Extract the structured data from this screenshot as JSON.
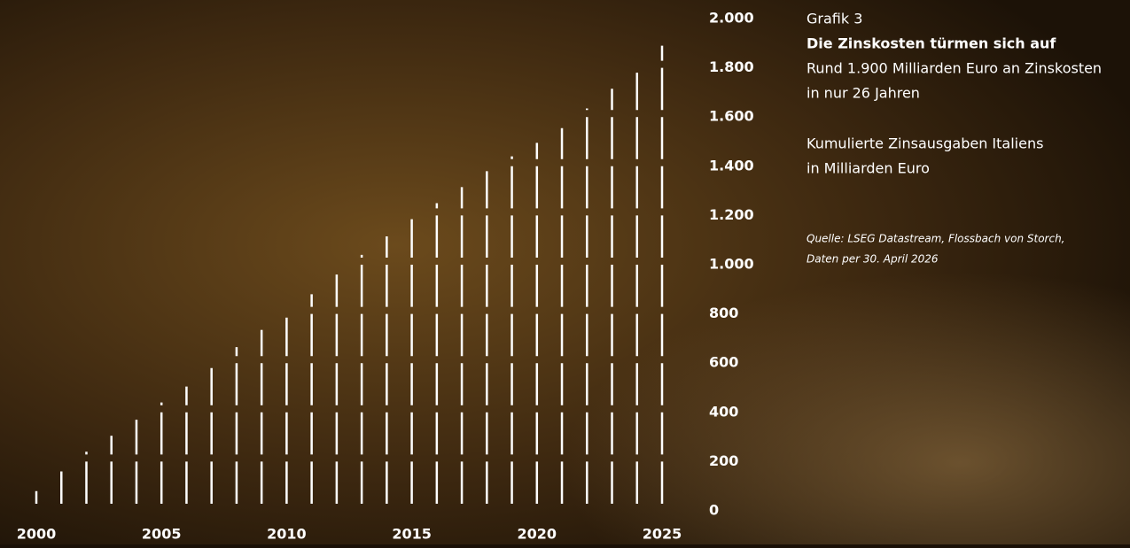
{
  "chart_data": {
    "type": "bar",
    "label": "Grafik 3",
    "title": "Die Zinskosten türmen sich auf",
    "subtitle": [
      "Rund 1.900 Milliarden Euro an Zinskosten",
      "in nur 26 Jahren"
    ],
    "y_label": [
      "Kumulierte Zinsausgaben Italiens",
      "in Milliarden Euro"
    ],
    "source": [
      "Quelle: LSEG Datastream, Flossbach von Storch,",
      "Daten per 30. April 2026"
    ],
    "categories": [
      "2000",
      null,
      null,
      null,
      null,
      "2005",
      null,
      null,
      null,
      null,
      "2010",
      null,
      null,
      null,
      null,
      "2015",
      null,
      null,
      null,
      null,
      "2020",
      null,
      null,
      null,
      null,
      "2025"
    ],
    "values": [
      80,
      160,
      240,
      305,
      370,
      440,
      505,
      580,
      665,
      735,
      785,
      880,
      960,
      1040,
      1115,
      1185,
      1250,
      1315,
      1380,
      1440,
      1495,
      1555,
      1635,
      1715,
      1780,
      1890
    ],
    "color": "#ffffff",
    "ylim": [
      0,
      2000
    ],
    "yticks": [
      0,
      200,
      400,
      600,
      800,
      {
        "value": 1000,
        "label": "1.000"
      },
      {
        "value": 1200,
        "label": "1.200"
      },
      {
        "value": 1400,
        "label": "1.400"
      },
      {
        "value": 1600,
        "label": "1.600"
      },
      {
        "value": 1800,
        "label": "1.800"
      },
      {
        "value": 2000,
        "label": "2.000"
      }
    ]
  }
}
